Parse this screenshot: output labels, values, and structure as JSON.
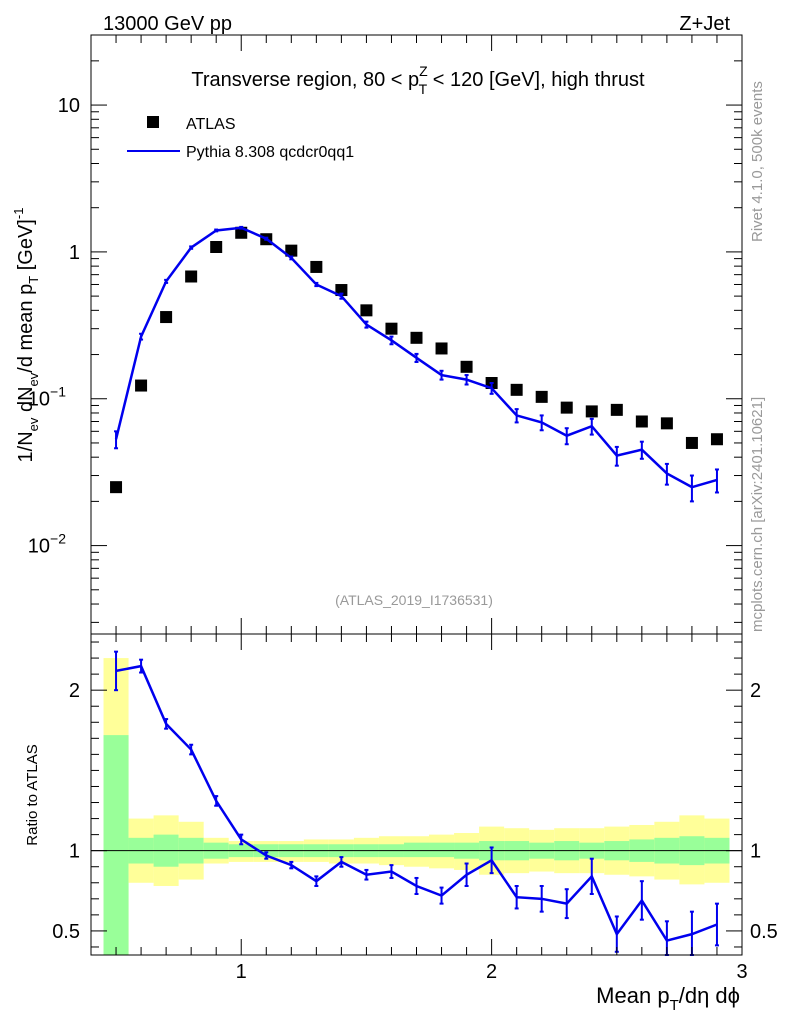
{
  "header": {
    "left": "13000 GeV pp",
    "right": "Z+Jet"
  },
  "side_labels": {
    "rivet": "Rivet 4.1.0,  500k events",
    "mcplots": "mcplots.cern.ch [arXiv:2401.10621]"
  },
  "chart_data": [
    {
      "type": "scatter",
      "panel": "main",
      "title": {
        "prefix": "Transverse region, 80 < p",
        "sup": "Z",
        "sub": "T",
        "suffix": " < 120 [GeV], high thrust"
      },
      "ylabel": "1/N_ev dN_ev/d mean p_T [GeV]^-1",
      "yscale": "log",
      "ylim": [
        0.0025,
        30
      ],
      "xlim": [
        0.4,
        3.0
      ],
      "yticks": [
        {
          "value": 10,
          "label": "10"
        },
        {
          "value": 1,
          "label": "1"
        },
        {
          "value": 0.1,
          "label": "10",
          "exp": "−1"
        },
        {
          "value": 0.01,
          "label": "10",
          "exp": "−2"
        }
      ],
      "watermark": "(ATLAS_2019_I1736531)",
      "legend": {
        "position": "top-left",
        "entries": [
          {
            "name": "ATLAS",
            "marker": "square",
            "color": "#000000"
          },
          {
            "name": "Pythia 8.308 qcdcr0qq1",
            "marker": "line",
            "color": "#0000ee"
          }
        ]
      },
      "series": [
        {
          "name": "ATLAS",
          "color": "#000000",
          "x": [
            0.5,
            0.6,
            0.7,
            0.8,
            0.9,
            1.0,
            1.1,
            1.2,
            1.3,
            1.4,
            1.5,
            1.6,
            1.7,
            1.8,
            1.9,
            2.0,
            2.1,
            2.2,
            2.3,
            2.4,
            2.5,
            2.6,
            2.7,
            2.8,
            2.9
          ],
          "y": [
            0.025,
            0.123,
            0.36,
            0.68,
            1.08,
            1.35,
            1.22,
            1.02,
            0.79,
            0.55,
            0.4,
            0.3,
            0.26,
            0.22,
            0.165,
            0.128,
            0.115,
            0.103,
            0.087,
            0.082,
            0.084,
            0.07,
            0.068,
            0.05,
            0.053
          ]
        },
        {
          "name": "Pythia 8.308 qcdcr0qq1",
          "color": "#0000ee",
          "x": [
            0.5,
            0.6,
            0.7,
            0.8,
            0.9,
            1.0,
            1.1,
            1.2,
            1.3,
            1.4,
            1.5,
            1.6,
            1.7,
            1.8,
            1.9,
            2.0,
            2.1,
            2.2,
            2.3,
            2.4,
            2.5,
            2.6,
            2.7,
            2.8,
            2.9
          ],
          "y": [
            0.053,
            0.265,
            0.63,
            1.07,
            1.4,
            1.46,
            1.23,
            0.91,
            0.6,
            0.5,
            0.32,
            0.25,
            0.19,
            0.145,
            0.135,
            0.118,
            0.077,
            0.069,
            0.056,
            0.065,
            0.041,
            0.045,
            0.031,
            0.025,
            0.028
          ],
          "err": [
            0.007,
            0.012,
            0.015,
            0.02,
            0.02,
            0.02,
            0.02,
            0.02,
            0.015,
            0.02,
            0.015,
            0.015,
            0.012,
            0.01,
            0.01,
            0.01,
            0.008,
            0.008,
            0.007,
            0.008,
            0.006,
            0.006,
            0.005,
            0.005,
            0.005
          ]
        }
      ]
    },
    {
      "type": "line",
      "panel": "ratio",
      "ylabel": "Ratio to ATLAS",
      "xlabel": "Mean p_T/dη dϕ",
      "ylim": [
        0.35,
        2.35
      ],
      "xlim": [
        0.4,
        3.0
      ],
      "yticks": [
        0.5,
        1,
        2
      ],
      "xticks": [
        1,
        2,
        3
      ],
      "reference_line": 1,
      "bands": {
        "x_edges": [
          0.45,
          0.55,
          0.65,
          0.75,
          0.85,
          0.95,
          1.05,
          1.15,
          1.25,
          1.35,
          1.45,
          1.55,
          1.65,
          1.75,
          1.85,
          1.95,
          2.05,
          2.15,
          2.25,
          2.35,
          2.45,
          2.55,
          2.65,
          2.75,
          2.85,
          2.95
        ],
        "stat_color": "#99ff99",
        "total_color": "#ffff99",
        "stat_lo": [
          0.35,
          0.92,
          0.9,
          0.92,
          0.95,
          0.96,
          0.96,
          0.96,
          0.96,
          0.96,
          0.96,
          0.96,
          0.96,
          0.96,
          0.95,
          0.94,
          0.94,
          0.95,
          0.94,
          0.95,
          0.94,
          0.93,
          0.92,
          0.91,
          0.92
        ],
        "stat_hi": [
          1.72,
          1.08,
          1.1,
          1.08,
          1.05,
          1.04,
          1.04,
          1.04,
          1.04,
          1.04,
          1.04,
          1.04,
          1.05,
          1.05,
          1.05,
          1.06,
          1.06,
          1.05,
          1.06,
          1.05,
          1.06,
          1.07,
          1.08,
          1.09,
          1.08
        ],
        "total_lo": [
          0.35,
          0.8,
          0.78,
          0.82,
          0.92,
          0.93,
          0.93,
          0.93,
          0.93,
          0.92,
          0.92,
          0.91,
          0.9,
          0.89,
          0.88,
          0.85,
          0.86,
          0.87,
          0.86,
          0.86,
          0.85,
          0.84,
          0.82,
          0.79,
          0.8
        ],
        "total_hi": [
          2.2,
          1.2,
          1.22,
          1.18,
          1.08,
          1.06,
          1.06,
          1.06,
          1.07,
          1.07,
          1.08,
          1.09,
          1.09,
          1.1,
          1.11,
          1.15,
          1.14,
          1.13,
          1.14,
          1.14,
          1.15,
          1.16,
          1.18,
          1.22,
          1.2
        ]
      },
      "series": [
        {
          "name": "Pythia 8.308 qcdcr0qq1 / ATLAS",
          "color": "#0000ee",
          "x": [
            0.5,
            0.6,
            0.7,
            0.8,
            0.9,
            1.0,
            1.1,
            1.2,
            1.3,
            1.4,
            1.5,
            1.6,
            1.7,
            1.8,
            1.9,
            2.0,
            2.1,
            2.2,
            2.3,
            2.4,
            2.5,
            2.6,
            2.7,
            2.8,
            2.9
          ],
          "y": [
            2.12,
            2.15,
            1.79,
            1.63,
            1.31,
            1.07,
            0.97,
            0.91,
            0.81,
            0.93,
            0.85,
            0.87,
            0.78,
            0.72,
            0.85,
            0.94,
            0.71,
            0.7,
            0.67,
            0.84,
            0.48,
            0.69,
            0.44,
            0.48,
            0.54
          ],
          "err": [
            0.12,
            0.04,
            0.03,
            0.03,
            0.03,
            0.03,
            0.02,
            0.02,
            0.03,
            0.03,
            0.03,
            0.04,
            0.05,
            0.05,
            0.07,
            0.08,
            0.07,
            0.08,
            0.09,
            0.11,
            0.11,
            0.12,
            0.12,
            0.14,
            0.13
          ]
        }
      ]
    }
  ]
}
